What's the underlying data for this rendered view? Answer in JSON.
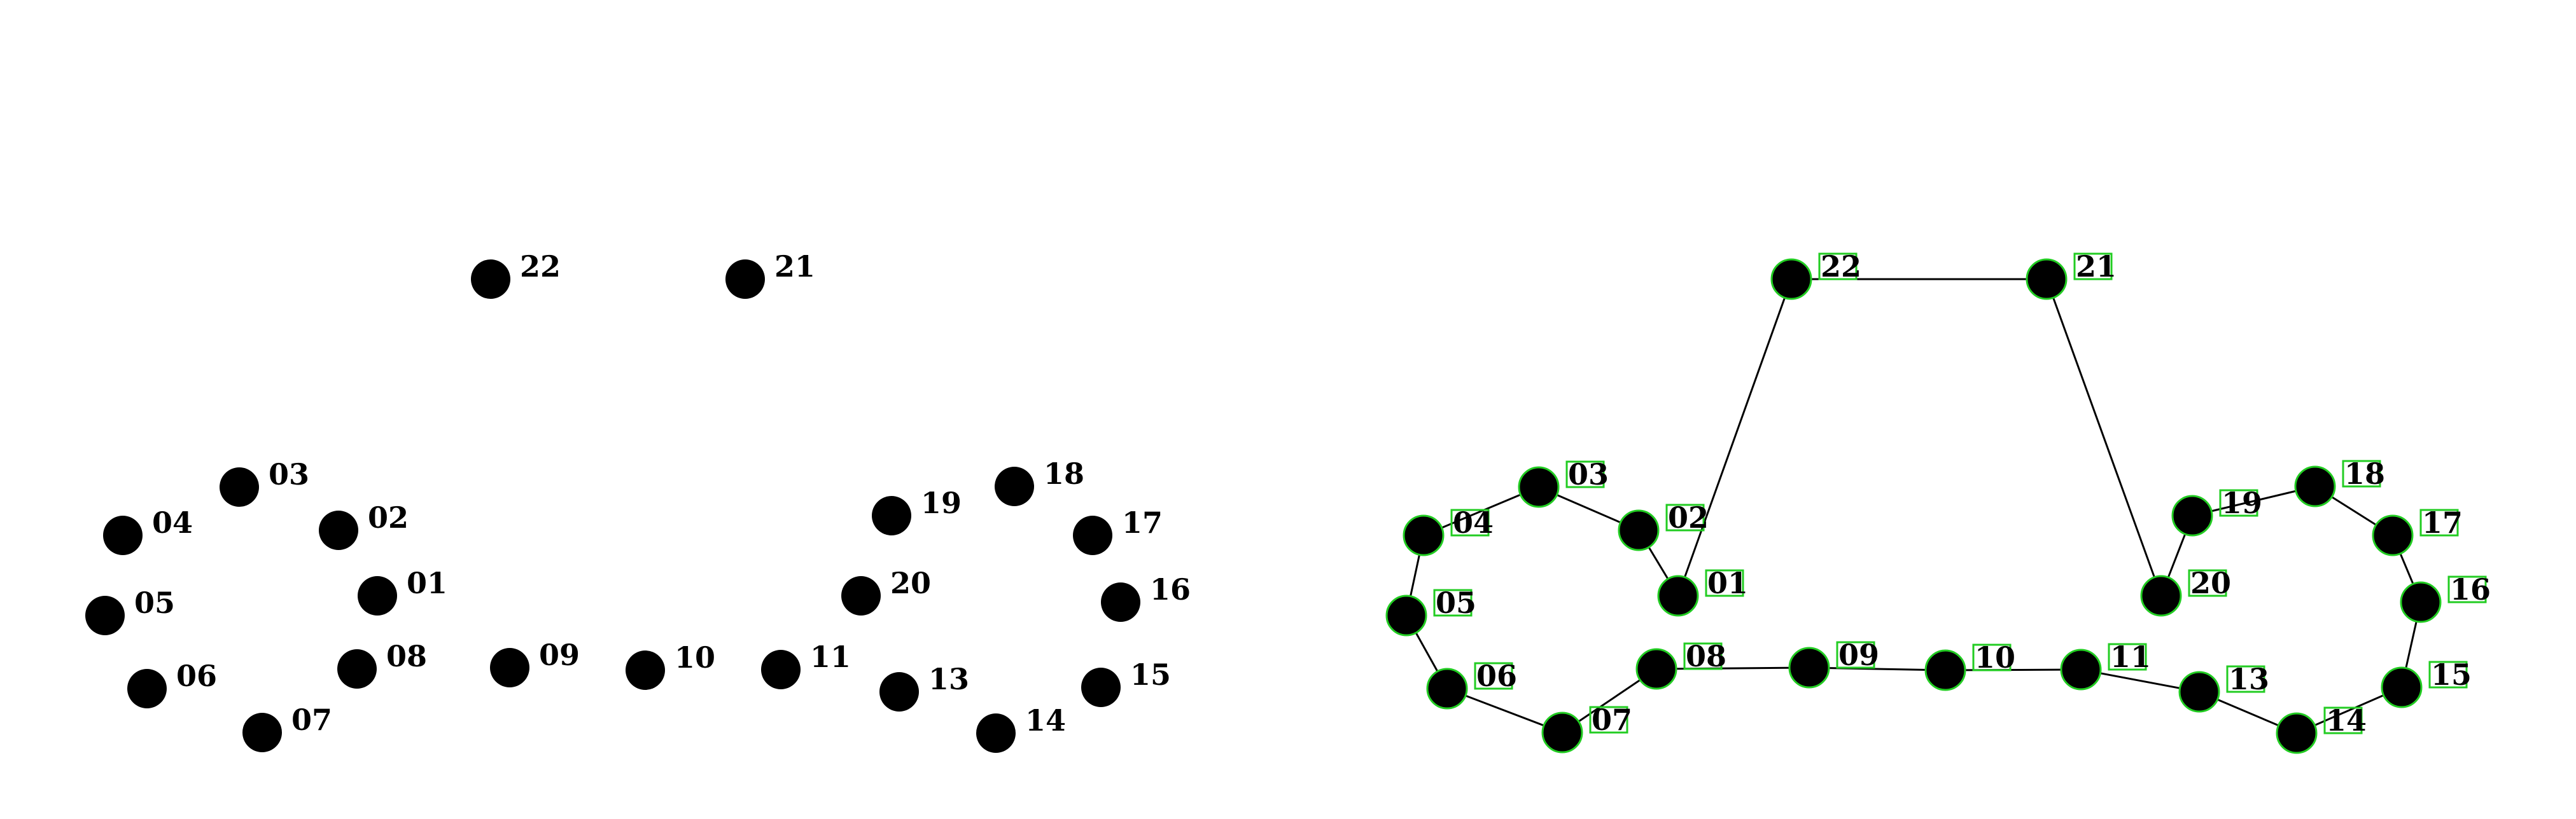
{
  "colors": {
    "background": "#ffffff",
    "node_fill": "#000000",
    "edge": "#000000",
    "highlight": "#22cc22"
  },
  "left_panel": {
    "nodes": [
      "22",
      "21",
      "03",
      "04",
      "02",
      "05",
      "01",
      "06",
      "08",
      "07",
      "09",
      "10",
      "11",
      "19",
      "18",
      "17",
      "20",
      "16",
      "13",
      "15",
      "14"
    ],
    "edges": []
  },
  "right_panel": {
    "nodes": [
      "22",
      "21",
      "03",
      "04",
      "02",
      "05",
      "01",
      "06",
      "08",
      "07",
      "09",
      "10",
      "11",
      "19",
      "18",
      "17",
      "20",
      "16",
      "13",
      "15",
      "14"
    ],
    "edges": [
      [
        "22",
        "21"
      ],
      [
        "22",
        "01"
      ],
      [
        "21",
        "20"
      ],
      [
        "03",
        "04"
      ],
      [
        "03",
        "02"
      ],
      [
        "02",
        "01"
      ],
      [
        "04",
        "05"
      ],
      [
        "05",
        "06"
      ],
      [
        "06",
        "07"
      ],
      [
        "07",
        "08"
      ],
      [
        "08",
        "09"
      ],
      [
        "09",
        "10"
      ],
      [
        "10",
        "11"
      ],
      [
        "11",
        "13"
      ],
      [
        "13",
        "14"
      ],
      [
        "14",
        "15"
      ],
      [
        "15",
        "16"
      ],
      [
        "16",
        "17"
      ],
      [
        "17",
        "18"
      ],
      [
        "18",
        "19"
      ],
      [
        "19",
        "20"
      ]
    ]
  }
}
